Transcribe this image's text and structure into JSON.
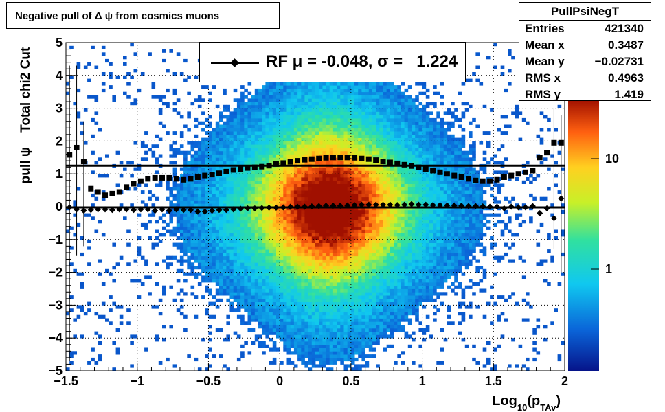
{
  "chart_data": {
    "type": "heatmap",
    "title": "Negative pull of Δ ψ from cosmics muons",
    "xlabel": "Log",
    "xlabel_sub": "10",
    "xlabel_arg": "(p",
    "xlabel_arg_sub": "TAv",
    "xlabel_close": ")",
    "ylabel": "pull ψ    Total chi2 Cut",
    "xlim": [
      -1.5,
      2
    ],
    "ylim": [
      -5,
      5
    ],
    "x_ticks": [
      "−1.5",
      "−1",
      "−0.5",
      "0",
      "0.5",
      "1",
      "1.5",
      "2"
    ],
    "y_ticks": [
      "−5",
      "−4",
      "−3",
      "−2",
      "−1",
      "0",
      "1",
      "2",
      "3",
      "4",
      "5"
    ],
    "grid": true,
    "colorbar": {
      "scale": "log",
      "labels": [
        "1",
        "10"
      ]
    },
    "legend": {
      "placement": "top-center",
      "label": "RF μ = -0.048, σ =   1.224"
    },
    "stats": {
      "name": "PullPsiNegT",
      "rows": [
        {
          "key": "Entries",
          "value": "421340"
        },
        {
          "key": "Mean x",
          "value": "0.3487"
        },
        {
          "key": "Mean y",
          "value": "−0.02731"
        },
        {
          "key": "RMS x",
          "value": "0.4963"
        },
        {
          "key": "RMS y",
          "value": "1.419"
        }
      ]
    },
    "series": [
      {
        "kind": "mean",
        "marker": "diamond",
        "x": [
          -1.475,
          -1.425,
          -1.375,
          -1.325,
          -1.275,
          -1.225,
          -1.175,
          -1.125,
          -1.075,
          -1.025,
          -0.975,
          -0.925,
          -0.875,
          -0.825,
          -0.775,
          -0.725,
          -0.675,
          -0.625,
          -0.575,
          -0.525,
          -0.475,
          -0.425,
          -0.375,
          -0.325,
          -0.275,
          -0.225,
          -0.175,
          -0.125,
          -0.075,
          -0.025,
          0.025,
          0.075,
          0.125,
          0.175,
          0.225,
          0.275,
          0.325,
          0.375,
          0.425,
          0.475,
          0.525,
          0.575,
          0.625,
          0.675,
          0.725,
          0.775,
          0.825,
          0.875,
          0.925,
          0.975,
          1.025,
          1.075,
          1.125,
          1.175,
          1.225,
          1.275,
          1.325,
          1.375,
          1.425,
          1.475,
          1.525,
          1.575,
          1.625,
          1.675,
          1.725,
          1.775,
          1.825,
          1.875,
          1.925,
          1.975
        ],
        "y": [
          -0.02,
          -0.08,
          -0.12,
          -0.1,
          -0.08,
          -0.08,
          -0.1,
          -0.08,
          -0.08,
          -0.1,
          -0.08,
          -0.08,
          -0.12,
          -0.08,
          -0.12,
          -0.08,
          -0.1,
          -0.1,
          -0.15,
          -0.15,
          -0.12,
          -0.1,
          -0.1,
          -0.08,
          -0.06,
          -0.05,
          -0.05,
          -0.04,
          -0.03,
          -0.03,
          -0.02,
          0.0,
          0.0,
          0.0,
          0.01,
          0.02,
          0.03,
          0.03,
          0.03,
          0.04,
          0.05,
          0.06,
          0.06,
          0.06,
          0.06,
          0.06,
          0.05,
          0.06,
          0.08,
          0.06,
          0.06,
          0.05,
          0.05,
          0.04,
          0.04,
          0.03,
          0.02,
          0.02,
          0.01,
          0.0,
          0.0,
          -0.05,
          0.0,
          -0.02,
          -0.02,
          0.02,
          -0.2,
          -0.05,
          -0.35,
          0.25
        ]
      },
      {
        "kind": "rms",
        "marker": "square",
        "x": [
          -1.475,
          -1.425,
          -1.375,
          -1.325,
          -1.275,
          -1.225,
          -1.175,
          -1.125,
          -1.075,
          -1.025,
          -0.975,
          -0.925,
          -0.875,
          -0.825,
          -0.775,
          -0.725,
          -0.675,
          -0.625,
          -0.575,
          -0.525,
          -0.475,
          -0.425,
          -0.375,
          -0.325,
          -0.275,
          -0.225,
          -0.175,
          -0.125,
          -0.075,
          -0.025,
          0.025,
          0.075,
          0.125,
          0.175,
          0.225,
          0.275,
          0.325,
          0.375,
          0.425,
          0.475,
          0.525,
          0.575,
          0.625,
          0.675,
          0.725,
          0.775,
          0.825,
          0.875,
          0.925,
          0.975,
          1.025,
          1.075,
          1.125,
          1.175,
          1.225,
          1.275,
          1.325,
          1.375,
          1.425,
          1.475,
          1.525,
          1.575,
          1.625,
          1.675,
          1.725,
          1.775,
          1.825,
          1.875,
          1.925,
          1.975
        ],
        "y": [
          1.58,
          1.8,
          1.38,
          0.55,
          0.45,
          0.35,
          0.4,
          0.45,
          0.6,
          0.7,
          0.78,
          0.85,
          0.88,
          0.88,
          0.88,
          0.85,
          0.82,
          0.85,
          0.9,
          0.95,
          0.98,
          1.02,
          1.07,
          1.12,
          1.15,
          1.18,
          1.2,
          1.22,
          1.25,
          1.3,
          1.33,
          1.37,
          1.4,
          1.43,
          1.45,
          1.47,
          1.49,
          1.5,
          1.5,
          1.5,
          1.49,
          1.47,
          1.45,
          1.42,
          1.38,
          1.35,
          1.32,
          1.28,
          1.24,
          1.2,
          1.15,
          1.1,
          1.05,
          1.0,
          0.95,
          0.9,
          0.85,
          0.8,
          0.78,
          0.78,
          0.82,
          0.9,
          0.95,
          1.0,
          1.05,
          1.1,
          1.5,
          1.65,
          1.95,
          1.95
        ]
      }
    ],
    "fit_lines": [
      {
        "name": "mean",
        "value": -0.02
      },
      {
        "name": "rms",
        "value": 1.25
      }
    ]
  }
}
